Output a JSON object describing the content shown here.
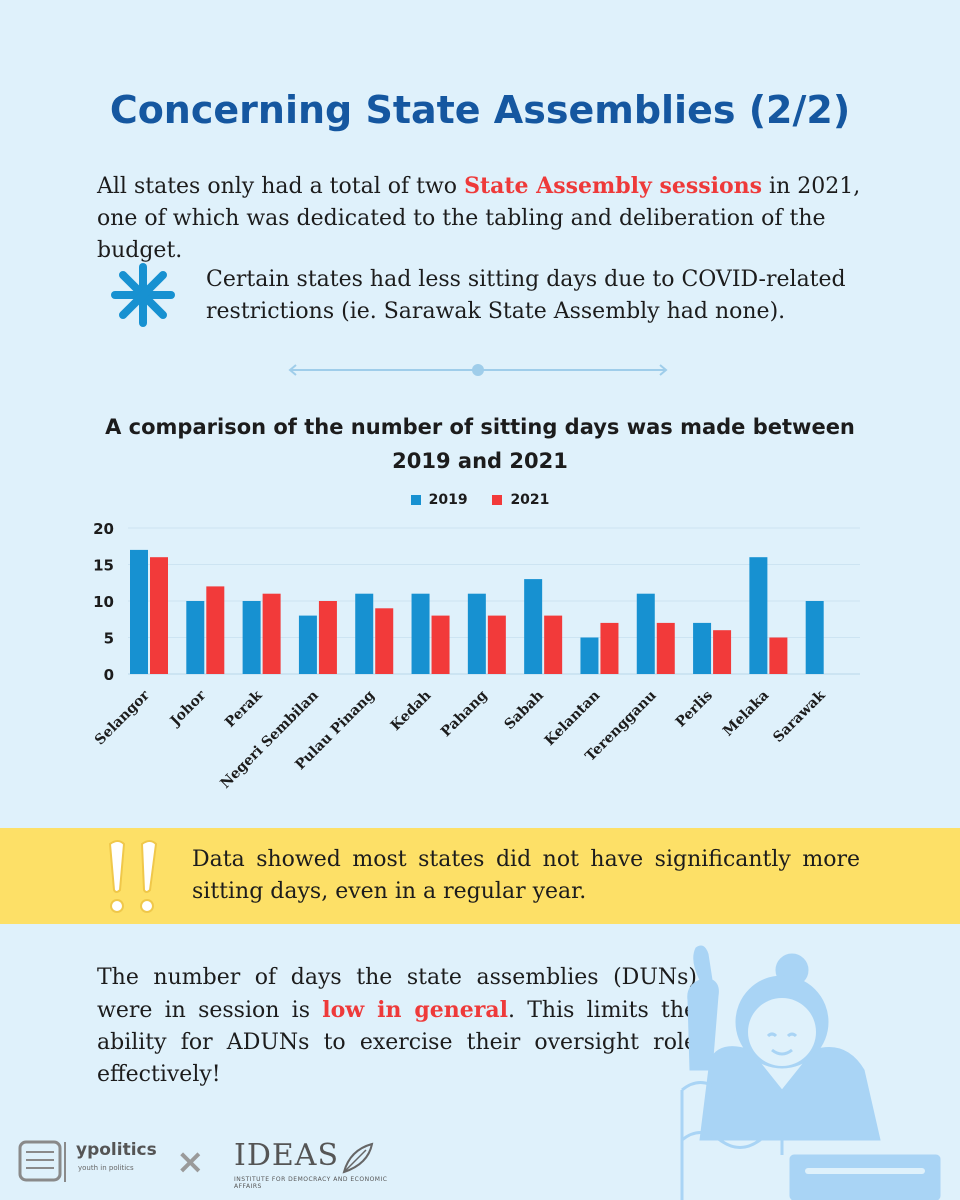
{
  "title": "Concerning State Assemblies (2/2)",
  "intro": {
    "before": "All states only had a total of two ",
    "highlight": "State Assembly sessions",
    "after": " in 2021, one of which was dedicated to the tabling and deliberation of the budget."
  },
  "note": {
    "icon": "asterisk-icon",
    "text": "Certain states had less sitting days due to COVID-related restrictions (ie. Sarawak State Assembly had none)."
  },
  "chart_data": {
    "type": "bar",
    "title": "A comparison of the number of sitting days was made between 2019 and 2021",
    "categories": [
      "Selangor",
      "Johor",
      "Perak",
      "Negeri Sembilan",
      "Pulau Pinang",
      "Kedah",
      "Pahang",
      "Sabah",
      "Kelantan",
      "Terengganu",
      "Perlis",
      "Melaka",
      "Sarawak"
    ],
    "series": [
      {
        "name": "2019",
        "color": "#1791d1",
        "values": [
          17,
          10,
          10,
          8,
          11,
          11,
          11,
          13,
          5,
          11,
          7,
          16,
          10
        ]
      },
      {
        "name": "2021",
        "color": "#f23a3a",
        "values": [
          16,
          12,
          11,
          10,
          9,
          8,
          8,
          8,
          7,
          7,
          6,
          5,
          0
        ]
      }
    ],
    "ylim": [
      0,
      20
    ],
    "yticks": [
      0,
      5,
      10,
      15,
      20
    ],
    "grid": true,
    "legend_position": "top-center",
    "xlabel": "",
    "ylabel": ""
  },
  "callout": {
    "icon": "double-exclamation-icon",
    "text": "Data showed most states did not have significantly more sitting days, even in a regular year."
  },
  "outro": {
    "before": "The number of days the state assemblies (DUNs) were in session is ",
    "highlight": "low in general",
    "after": ". This limits the ability for ADUNs to exercise their oversight role effectively!"
  },
  "footer": {
    "brand1": "ypolitics",
    "brand1_tagline": "youth in politics",
    "separator": "×",
    "brand2": "IDEAS",
    "brand2_tagline": "INSTITUTE FOR DEMOCRACY AND ECONOMIC AFFAIRS"
  },
  "colors": {
    "title": "#1557a0",
    "highlight": "#ee3a3a",
    "accent": "#1791d1",
    "band": "#fde067",
    "background": "#dff1fb"
  }
}
